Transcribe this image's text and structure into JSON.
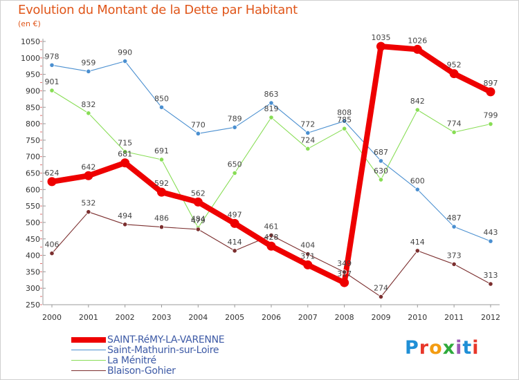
{
  "title": "Evolution du Montant de la Dette par Habitant",
  "subtitle": "(en €)",
  "logo": {
    "text": "Proxiti",
    "colors": [
      "#1f8fd6",
      "#e8372a",
      "#f39c12",
      "#2eaa3c",
      "#9b59b6",
      "#1f8fd6",
      "#e8372a"
    ]
  },
  "chart_data": {
    "type": "line",
    "title": "Evolution du Montant de la Dette par Habitant",
    "ylabel": "(en €)",
    "xlabel": "",
    "x": [
      "2000",
      "2001",
      "2002",
      "2003",
      "2004",
      "2005",
      "2006",
      "2007",
      "2008",
      "2009",
      "2010",
      "2011",
      "2012"
    ],
    "ylim": [
      250,
      1050
    ],
    "yticks": [
      250,
      300,
      350,
      400,
      450,
      500,
      550,
      600,
      650,
      700,
      750,
      800,
      850,
      900,
      950,
      1000,
      1050
    ],
    "grid": false,
    "legend": "bottom-left",
    "series": [
      {
        "name": "Saint-Mathurin-sur-Loire",
        "color": "#4a8fd0",
        "values": [
          978,
          959,
          990,
          850,
          770,
          789,
          863,
          772,
          808,
          687,
          600,
          487,
          443
        ]
      },
      {
        "name": "La Ménitré",
        "color": "#88dd55",
        "values": [
          901,
          832,
          715,
          691,
          484,
          650,
          819,
          724,
          785,
          630,
          842,
          774,
          799
        ]
      },
      {
        "name": "Blaison-Gohier",
        "color": "#7b2e2e",
        "values": [
          406,
          532,
          494,
          486,
          479,
          414,
          461,
          404,
          349,
          274,
          414,
          373,
          313
        ]
      },
      {
        "name": "SAINT-RéMY-LA-VARENNE",
        "color": "#ee0000",
        "values": [
          624,
          642,
          681,
          592,
          562,
          497,
          428,
          371,
          317,
          1035,
          1026,
          952,
          897
        ]
      }
    ]
  }
}
